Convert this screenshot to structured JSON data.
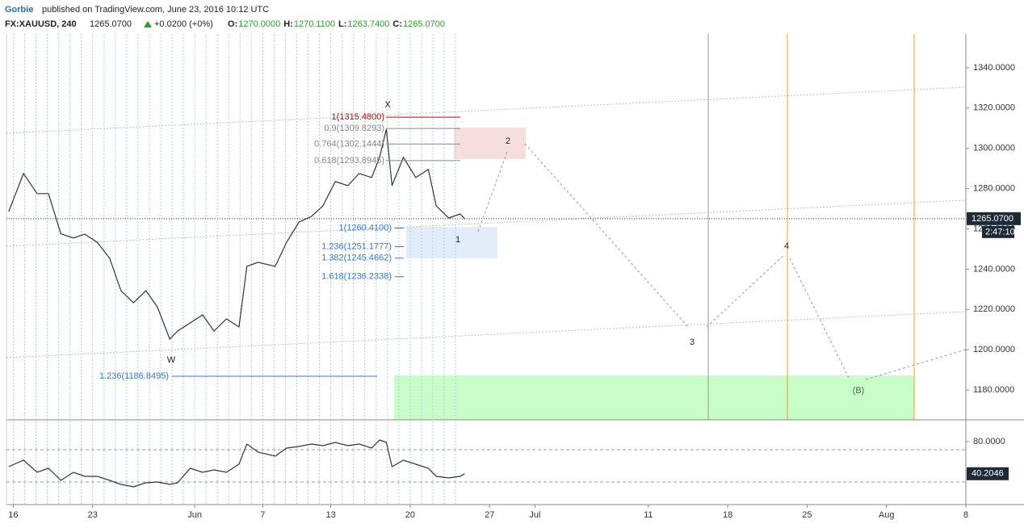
{
  "header": {
    "author": "Gorbie",
    "published": "published on TradingView.com, June 23, 2016 10:12 UTC",
    "symbol": "FX:XAUUSD, 240",
    "last": "1265.0700",
    "change": "+0.0200 (+0%)",
    "ohlc": [
      {
        "label": "O:",
        "value": "1270.0000"
      },
      {
        "label": "H:",
        "value": "1270.1100"
      },
      {
        "label": "L:",
        "value": "1263.7400"
      },
      {
        "label": "C:",
        "value": "1265.0700"
      }
    ]
  },
  "chart_data": [
    {
      "type": "line",
      "color": "#333333",
      "x": [
        -0.4,
        0.9,
        2.1,
        3.1,
        4.2,
        5.3,
        6.3,
        7.4,
        8.5,
        9.5,
        10.6,
        11.7,
        12.7,
        13.8,
        14.5,
        15.6,
        16.7,
        17.7,
        18.8,
        19.9,
        20.6,
        21.6,
        23.1,
        24.1,
        25.2,
        26.3,
        27.3,
        28.4,
        29.5,
        30.5,
        31.6,
        32.3,
        32.9,
        33.4,
        34.4,
        35.5,
        36.6,
        37.3,
        38.4,
        39.4,
        39.8
      ],
      "values": [
        1268.6,
        1287.5,
        1277.5,
        1277.5,
        1257.5,
        1255.5,
        1257.4,
        1253.4,
        1245.4,
        1229.3,
        1223.3,
        1229.3,
        1221.3,
        1205.3,
        1209.3,
        1213.3,
        1217.3,
        1209.3,
        1215.3,
        1211.3,
        1241.4,
        1243.4,
        1241.4,
        1253.4,
        1263.4,
        1266.2,
        1271.4,
        1283.5,
        1281.5,
        1287.5,
        1285.5,
        1295.5,
        1309.5,
        1281.5,
        1295.5,
        1285.5,
        1289.5,
        1271.4,
        1265.4,
        1267.4,
        1265.07
      ],
      "xlim": [
        -0.6,
        84
      ],
      "ylim": [
        1165.2,
        1356.8
      ],
      "xticks": [
        {
          "value": 0,
          "label": "16"
        },
        {
          "value": 7,
          "label": "23"
        },
        {
          "value": 16,
          "label": "Jun"
        },
        {
          "value": 22,
          "label": "7"
        },
        {
          "value": 28,
          "label": "13"
        },
        {
          "value": 35,
          "label": "20"
        },
        {
          "value": 42,
          "label": "27"
        },
        {
          "value": 46,
          "label": "Jul"
        },
        {
          "value": 56,
          "label": "11"
        },
        {
          "value": 63,
          "label": "18"
        },
        {
          "value": 70,
          "label": "25"
        },
        {
          "value": 77,
          "label": "Aug"
        },
        {
          "value": 84,
          "label": "8"
        }
      ],
      "yticks": [
        {
          "value": 1180,
          "label": "1180.0000"
        },
        {
          "value": 1200,
          "label": "1200.0000"
        },
        {
          "value": 1220,
          "label": "1220.0000"
        },
        {
          "value": 1240,
          "label": "1240.0000"
        },
        {
          "value": 1260,
          "label": "1260.0000"
        },
        {
          "value": 1280,
          "label": "1280.0000"
        },
        {
          "value": 1300,
          "label": "1300.0000"
        },
        {
          "value": 1320,
          "label": "1320.0000"
        },
        {
          "value": 1340,
          "label": "1340.0000"
        }
      ],
      "last_price": {
        "value": 1265.07,
        "label": "1265.0700"
      },
      "countdown": "2:47:10",
      "levels": [
        {
          "label": "1(1315.4800)",
          "value": 1315.48,
          "color": "#cc0000"
        },
        {
          "label": "0.9(1309.8293)",
          "value": 1309.8293,
          "color": "#888888"
        },
        {
          "label": "0.764(1302.1444)",
          "value": 1302.1444,
          "color": "#888888"
        },
        {
          "label": "0.618(1293.8945)",
          "value": 1293.8945,
          "color": "#888888"
        },
        {
          "label": "1(1260.4100)",
          "value": 1260.41,
          "color": "#3a78c8"
        },
        {
          "label": "1.236(1251.1777)",
          "value": 1251.1777,
          "color": "#3a78c8"
        },
        {
          "label": "1.382(1245.4662)",
          "value": 1245.4662,
          "color": "#3a78c8"
        },
        {
          "label": "1.618(1236.2338)",
          "value": 1236.2338,
          "color": "#3a78c8"
        },
        {
          "label": "1.236(1186.8495)",
          "value": 1186.8495,
          "color": "#3a78c8"
        }
      ],
      "wave_labels": [
        "W",
        "X",
        "1",
        "2",
        "3",
        "4",
        "(B)"
      ]
    },
    {
      "type": "line",
      "color": "#333333",
      "x": [
        -0.4,
        0.9,
        2.1,
        3.1,
        4.2,
        5.3,
        6.3,
        7.4,
        8.5,
        9.5,
        10.6,
        11.7,
        12.7,
        13.8,
        14.5,
        15.6,
        16.7,
        17.7,
        18.8,
        19.9,
        20.6,
        21.6,
        23.1,
        24.1,
        25.2,
        26.3,
        27.3,
        28.4,
        29.5,
        30.5,
        31.6,
        32.3,
        32.9,
        33.4,
        34.4,
        35.5,
        36.6,
        37.3,
        38.4,
        39.4,
        39.8
      ],
      "values": [
        49,
        57,
        42,
        47,
        32,
        42,
        37,
        37,
        32,
        27,
        24,
        29,
        30,
        27,
        29,
        47,
        42,
        45,
        42,
        52,
        77,
        67,
        62,
        72,
        74,
        77,
        75,
        79,
        75,
        77,
        72,
        82,
        79,
        49,
        57,
        52,
        47,
        37,
        35,
        37,
        40.2046
      ],
      "xlim": [
        -0.6,
        84
      ],
      "ylim": [
        2,
        105
      ],
      "yticks": [
        {
          "value": 80,
          "label": "80.0000"
        }
      ],
      "bands": [
        70,
        30
      ],
      "last_label": "40.2046"
    }
  ]
}
